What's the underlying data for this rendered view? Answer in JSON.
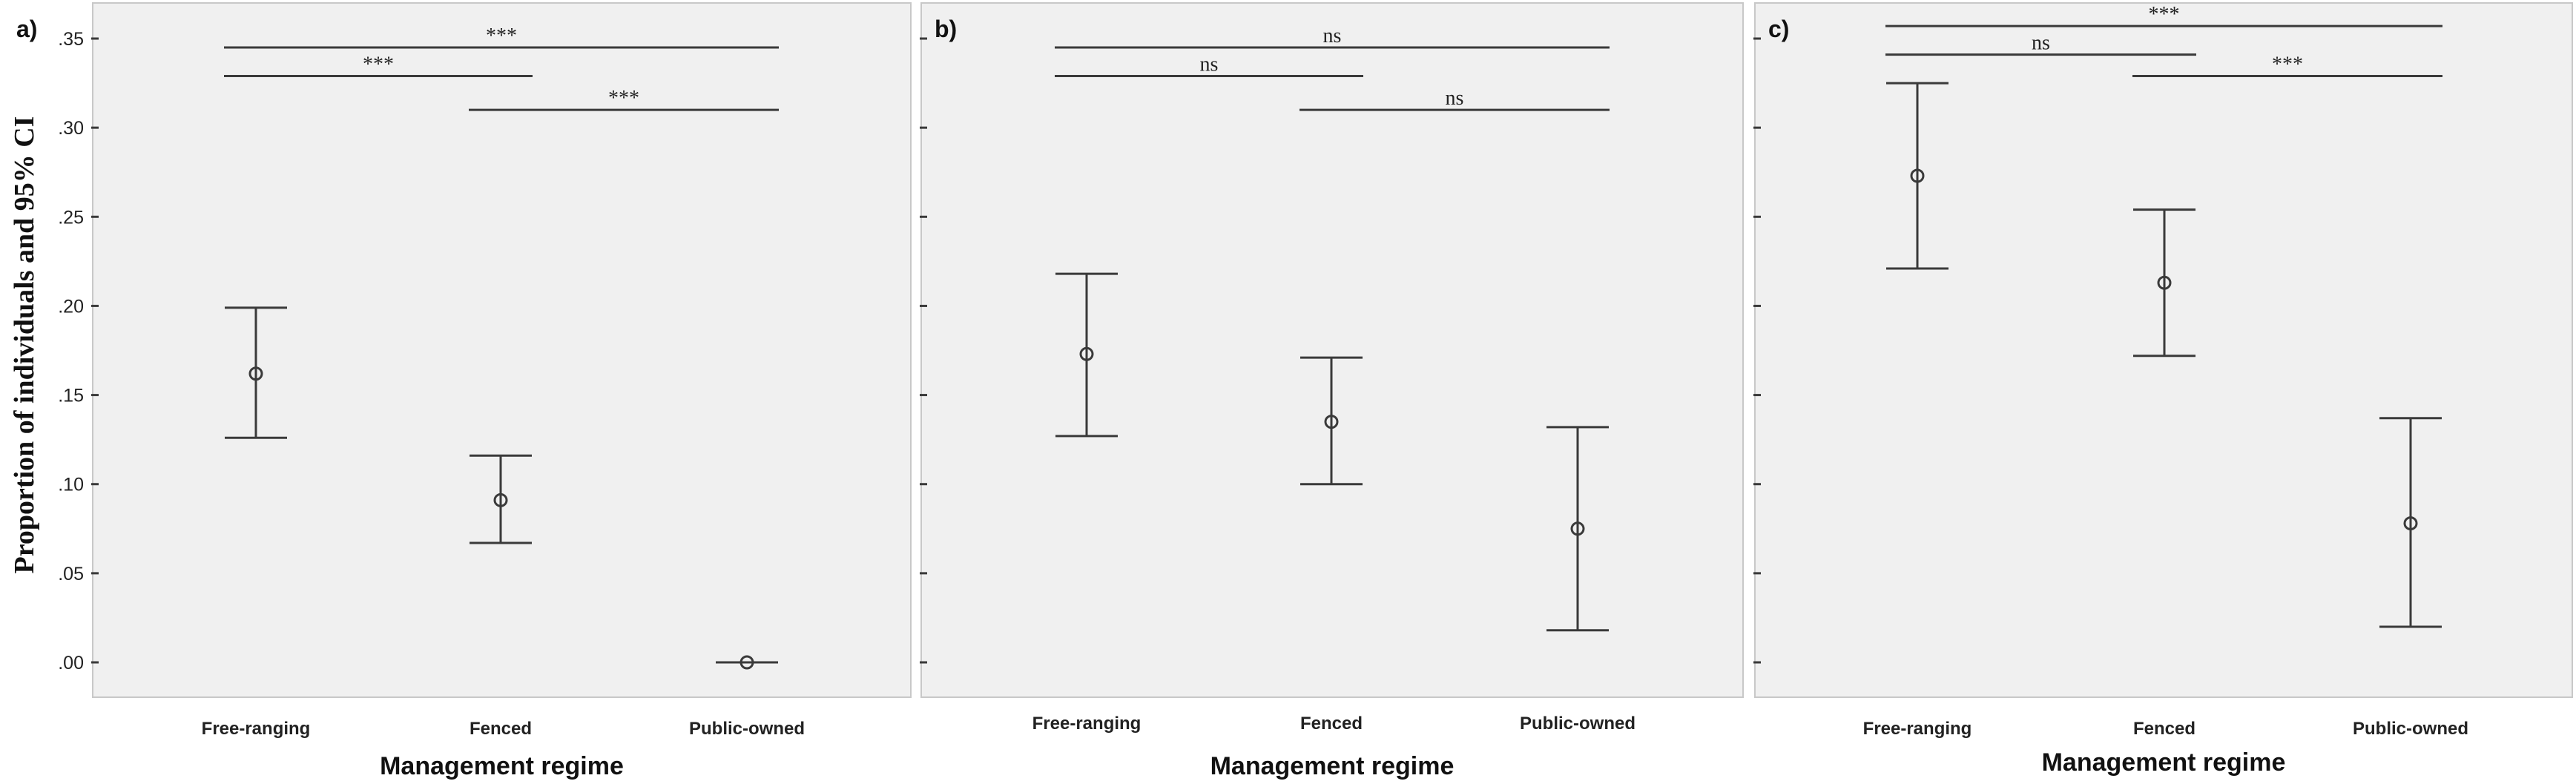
{
  "ylabel": "Proportion of individuals and 95% CI",
  "chart_data": [
    {
      "type": "errorbar",
      "panel_label": "a)",
      "xlabel": "Management regime",
      "categories": [
        "Free-ranging",
        "Fenced",
        "Public-owned"
      ],
      "values": [
        0.162,
        0.091,
        0.0
      ],
      "ci_lower": [
        0.126,
        0.067,
        0.0
      ],
      "ci_upper": [
        0.199,
        0.116,
        0.0
      ],
      "ylim": [
        0,
        0.36
      ],
      "yticks": [
        0,
        0.05,
        0.1,
        0.15,
        0.2,
        0.25,
        0.3,
        0.35
      ],
      "ytick_labels": [
        ".00",
        ".05",
        ".10",
        ".15",
        ".20",
        ".25",
        ".30",
        ".35"
      ],
      "show_ytick_labels": true,
      "comparisons": [
        {
          "from": 0,
          "to": 2,
          "label": "***",
          "level": 0.345
        },
        {
          "from": 0,
          "to": 1,
          "label": "***",
          "level": 0.329
        },
        {
          "from": 1,
          "to": 2,
          "label": "***",
          "level": 0.31
        }
      ]
    },
    {
      "type": "errorbar",
      "panel_label": "b)",
      "xlabel": "Management regime",
      "categories": [
        "Free-ranging",
        "Fenced",
        "Public-owned"
      ],
      "values": [
        0.173,
        0.135,
        0.075
      ],
      "ci_lower": [
        0.127,
        0.1,
        0.018
      ],
      "ci_upper": [
        0.218,
        0.171,
        0.132
      ],
      "ylim": [
        0,
        0.36
      ],
      "yticks": [
        0,
        0.05,
        0.1,
        0.15,
        0.2,
        0.25,
        0.3,
        0.35
      ],
      "ytick_labels": [],
      "show_ytick_labels": false,
      "comparisons": [
        {
          "from": 0,
          "to": 2,
          "label": "ns",
          "level": 0.345
        },
        {
          "from": 0,
          "to": 1,
          "label": "ns",
          "level": 0.329
        },
        {
          "from": 1,
          "to": 2,
          "label": "ns",
          "level": 0.31
        }
      ]
    },
    {
      "type": "errorbar",
      "panel_label": "c)",
      "xlabel": "Management regime",
      "categories": [
        "Free-ranging",
        "Fenced",
        "Public-owned"
      ],
      "values": [
        0.273,
        0.213,
        0.078
      ],
      "ci_lower": [
        0.221,
        0.172,
        0.02
      ],
      "ci_upper": [
        0.325,
        0.254,
        0.137
      ],
      "ylim": [
        0,
        0.36
      ],
      "yticks": [
        0,
        0.05,
        0.1,
        0.15,
        0.2,
        0.25,
        0.3,
        0.35
      ],
      "ytick_labels": [],
      "show_ytick_labels": false,
      "comparisons": [
        {
          "from": 0,
          "to": 2,
          "label": "***",
          "level": 0.357
        },
        {
          "from": 0,
          "to": 1,
          "label": "ns",
          "level": 0.341
        },
        {
          "from": 1,
          "to": 2,
          "label": "***",
          "level": 0.329
        }
      ]
    }
  ]
}
